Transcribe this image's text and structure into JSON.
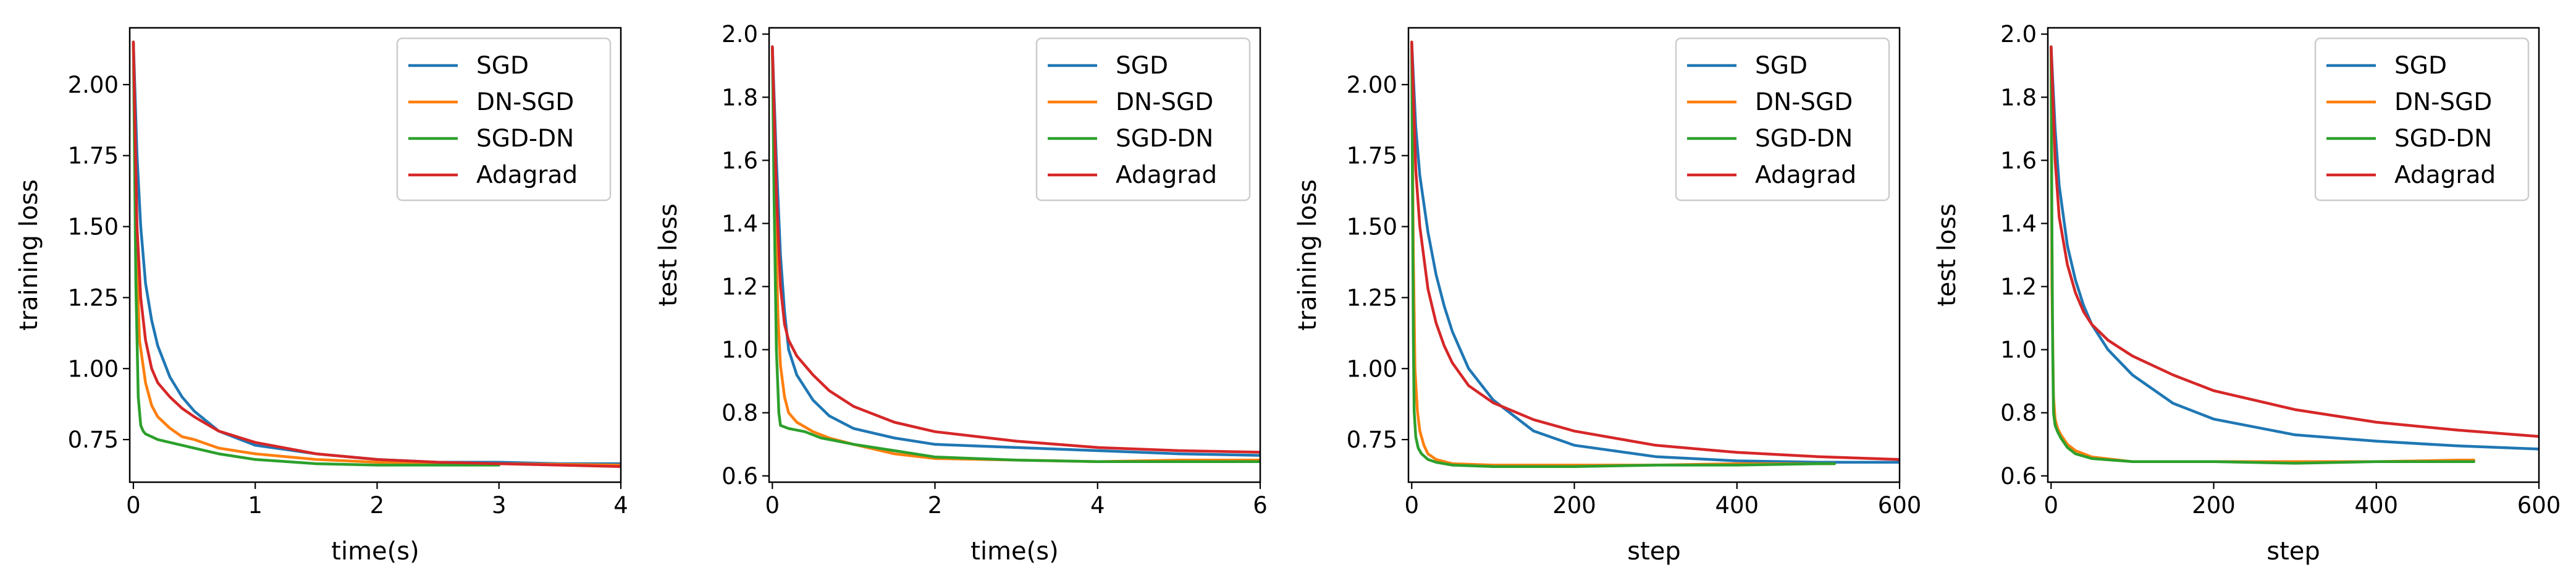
{
  "chart_data": [
    {
      "type": "line",
      "xlabel": "time(s)",
      "ylabel": "training loss",
      "xlim": [
        -0.03,
        4
      ],
      "ylim": [
        0.6,
        2.2
      ],
      "xticks": [
        0,
        1,
        2,
        3,
        4
      ],
      "xtick_labels": [
        "0",
        "1",
        "2",
        "3",
        "4"
      ],
      "yticks": [
        0.75,
        1.0,
        1.25,
        1.5,
        1.75,
        2.0
      ],
      "ytick_labels": [
        "0.75",
        "1.00",
        "1.25",
        "1.50",
        "1.75",
        "2.00"
      ],
      "legend_position": "top-right",
      "series": [
        {
          "name": "SGD",
          "color": "#1f77b4",
          "x": [
            0,
            0.03,
            0.06,
            0.1,
            0.15,
            0.2,
            0.3,
            0.4,
            0.5,
            0.7,
            1.0,
            1.5,
            2.0,
            2.5,
            3.0,
            3.5,
            4.0
          ],
          "y": [
            2.15,
            1.75,
            1.5,
            1.3,
            1.17,
            1.08,
            0.97,
            0.9,
            0.85,
            0.78,
            0.73,
            0.7,
            0.68,
            0.67,
            0.67,
            0.665,
            0.665
          ]
        },
        {
          "name": "DN-SGD",
          "color": "#ff7f0e",
          "x": [
            0,
            0.02,
            0.05,
            0.1,
            0.15,
            0.2,
            0.3,
            0.4,
            0.5,
            0.7,
            1.0,
            1.5,
            2.0,
            3.0,
            4.0
          ],
          "y": [
            2.15,
            1.5,
            1.1,
            0.95,
            0.87,
            0.83,
            0.79,
            0.76,
            0.75,
            0.72,
            0.7,
            0.68,
            0.67,
            0.665,
            0.66
          ]
        },
        {
          "name": "SGD-DN",
          "color": "#2ca02c",
          "x": [
            0,
            0.02,
            0.04,
            0.06,
            0.08,
            0.1,
            0.2,
            0.3,
            0.5,
            0.7,
            1.0,
            1.5,
            2.0,
            2.5,
            3.0
          ],
          "y": [
            2.15,
            1.3,
            0.9,
            0.8,
            0.78,
            0.77,
            0.75,
            0.74,
            0.72,
            0.7,
            0.68,
            0.665,
            0.66,
            0.66,
            0.66
          ]
        },
        {
          "name": "Adagrad",
          "color": "#d62728",
          "x": [
            0,
            0.03,
            0.06,
            0.1,
            0.15,
            0.2,
            0.3,
            0.4,
            0.5,
            0.7,
            1.0,
            1.5,
            2.0,
            2.5,
            3.0,
            3.5,
            4.0
          ],
          "y": [
            2.15,
            1.5,
            1.25,
            1.1,
            1.0,
            0.95,
            0.9,
            0.86,
            0.83,
            0.78,
            0.74,
            0.7,
            0.68,
            0.67,
            0.665,
            0.66,
            0.655
          ]
        }
      ]
    },
    {
      "type": "line",
      "xlabel": "time(s)",
      "ylabel": "test loss",
      "xlim": [
        -0.04,
        6
      ],
      "ylim": [
        0.58,
        2.02
      ],
      "xticks": [
        0,
        2,
        4,
        6
      ],
      "xtick_labels": [
        "0",
        "2",
        "4",
        "6"
      ],
      "yticks": [
        0.6,
        0.8,
        1.0,
        1.2,
        1.4,
        1.6,
        1.8,
        2.0
      ],
      "ytick_labels": [
        "0.6",
        "0.8",
        "1.0",
        "1.2",
        "1.4",
        "1.6",
        "1.8",
        "2.0"
      ],
      "legend_position": "top-right",
      "series": [
        {
          "name": "SGD",
          "color": "#1f77b4",
          "x": [
            0,
            0.05,
            0.1,
            0.15,
            0.2,
            0.3,
            0.5,
            0.7,
            1.0,
            1.5,
            2.0,
            3.0,
            4.0,
            5.0,
            6.0
          ],
          "y": [
            1.96,
            1.6,
            1.3,
            1.12,
            1.0,
            0.92,
            0.84,
            0.79,
            0.75,
            0.72,
            0.7,
            0.69,
            0.68,
            0.67,
            0.665
          ]
        },
        {
          "name": "DN-SGD",
          "color": "#ff7f0e",
          "x": [
            0,
            0.03,
            0.07,
            0.1,
            0.15,
            0.2,
            0.3,
            0.5,
            0.7,
            1.0,
            1.5,
            2.0,
            3.0,
            4.0,
            5.0,
            6.0
          ],
          "y": [
            1.96,
            1.5,
            1.1,
            0.95,
            0.85,
            0.8,
            0.77,
            0.74,
            0.72,
            0.7,
            0.67,
            0.655,
            0.65,
            0.645,
            0.65,
            0.65
          ]
        },
        {
          "name": "SGD-DN",
          "color": "#2ca02c",
          "x": [
            0,
            0.02,
            0.05,
            0.08,
            0.1,
            0.2,
            0.4,
            0.6,
            0.8,
            1.0,
            1.5,
            2.0,
            3.0,
            4.0,
            5.0,
            6.0
          ],
          "y": [
            1.96,
            1.5,
            1.0,
            0.8,
            0.76,
            0.75,
            0.74,
            0.72,
            0.71,
            0.7,
            0.68,
            0.66,
            0.65,
            0.645,
            0.645,
            0.645
          ]
        },
        {
          "name": "Adagrad",
          "color": "#d62728",
          "x": [
            0,
            0.05,
            0.1,
            0.15,
            0.2,
            0.3,
            0.5,
            0.7,
            1.0,
            1.5,
            2.0,
            3.0,
            4.0,
            5.0,
            6.0
          ],
          "y": [
            1.96,
            1.5,
            1.2,
            1.08,
            1.03,
            0.98,
            0.92,
            0.87,
            0.82,
            0.77,
            0.74,
            0.71,
            0.69,
            0.68,
            0.675
          ]
        }
      ]
    },
    {
      "type": "line",
      "xlabel": "step",
      "ylabel": "training loss",
      "xlim": [
        -4,
        600
      ],
      "ylim": [
        0.6,
        2.2
      ],
      "xticks": [
        0,
        200,
        400,
        600
      ],
      "xtick_labels": [
        "0",
        "200",
        "400",
        "600"
      ],
      "yticks": [
        0.75,
        1.0,
        1.25,
        1.5,
        1.75,
        2.0
      ],
      "ytick_labels": [
        "0.75",
        "1.00",
        "1.25",
        "1.50",
        "1.75",
        "2.00"
      ],
      "legend_position": "top-right",
      "series": [
        {
          "name": "SGD",
          "color": "#1f77b4",
          "x": [
            0,
            5,
            10,
            20,
            30,
            40,
            50,
            70,
            100,
            150,
            200,
            300,
            400,
            500,
            600
          ],
          "y": [
            2.15,
            1.85,
            1.68,
            1.48,
            1.33,
            1.22,
            1.13,
            1.0,
            0.89,
            0.78,
            0.73,
            0.69,
            0.675,
            0.67,
            0.67
          ]
        },
        {
          "name": "DN-SGD",
          "color": "#ff7f0e",
          "x": [
            0,
            2,
            4,
            7,
            10,
            15,
            20,
            30,
            50,
            100,
            200,
            300,
            400,
            500,
            520
          ],
          "y": [
            2.15,
            1.4,
            1.0,
            0.85,
            0.78,
            0.73,
            0.7,
            0.68,
            0.665,
            0.66,
            0.66,
            0.66,
            0.665,
            0.665,
            0.665
          ]
        },
        {
          "name": "SGD-DN",
          "color": "#2ca02c",
          "x": [
            0,
            1,
            2,
            3,
            5,
            8,
            12,
            20,
            30,
            50,
            100,
            200,
            300,
            400,
            500,
            520
          ],
          "y": [
            2.15,
            1.6,
            1.1,
            0.85,
            0.76,
            0.72,
            0.7,
            0.68,
            0.67,
            0.66,
            0.655,
            0.655,
            0.66,
            0.66,
            0.665,
            0.665
          ]
        },
        {
          "name": "Adagrad",
          "color": "#d62728",
          "x": [
            0,
            5,
            10,
            20,
            30,
            40,
            50,
            70,
            100,
            150,
            200,
            300,
            400,
            500,
            600
          ],
          "y": [
            2.15,
            1.7,
            1.5,
            1.28,
            1.16,
            1.08,
            1.02,
            0.94,
            0.88,
            0.82,
            0.78,
            0.73,
            0.705,
            0.69,
            0.68
          ]
        }
      ]
    },
    {
      "type": "line",
      "xlabel": "step",
      "ylabel": "test loss",
      "xlim": [
        -4,
        600
      ],
      "ylim": [
        0.58,
        2.02
      ],
      "xticks": [
        0,
        200,
        400,
        600
      ],
      "xtick_labels": [
        "0",
        "200",
        "400",
        "600"
      ],
      "yticks": [
        0.6,
        0.8,
        1.0,
        1.2,
        1.4,
        1.6,
        1.8,
        2.0
      ],
      "ytick_labels": [
        "0.6",
        "0.8",
        "1.0",
        "1.2",
        "1.4",
        "1.6",
        "1.8",
        "2.0"
      ],
      "legend_position": "top-right",
      "series": [
        {
          "name": "SGD",
          "color": "#1f77b4",
          "x": [
            0,
            5,
            10,
            20,
            30,
            40,
            50,
            70,
            100,
            150,
            200,
            300,
            400,
            500,
            600
          ],
          "y": [
            1.96,
            1.7,
            1.52,
            1.33,
            1.22,
            1.14,
            1.08,
            1.0,
            0.92,
            0.83,
            0.78,
            0.73,
            0.71,
            0.695,
            0.685
          ]
        },
        {
          "name": "DN-SGD",
          "color": "#ff7f0e",
          "x": [
            0,
            1,
            3,
            5,
            8,
            12,
            20,
            30,
            50,
            100,
            200,
            300,
            400,
            500,
            520
          ],
          "y": [
            1.96,
            1.2,
            0.85,
            0.78,
            0.75,
            0.73,
            0.7,
            0.68,
            0.66,
            0.645,
            0.645,
            0.645,
            0.645,
            0.65,
            0.65
          ]
        },
        {
          "name": "SGD-DN",
          "color": "#2ca02c",
          "x": [
            0,
            1,
            2,
            3,
            5,
            8,
            12,
            20,
            30,
            50,
            100,
            200,
            300,
            400,
            500,
            520
          ],
          "y": [
            1.96,
            1.4,
            1.0,
            0.8,
            0.76,
            0.74,
            0.72,
            0.69,
            0.67,
            0.655,
            0.645,
            0.645,
            0.64,
            0.645,
            0.645,
            0.645
          ]
        },
        {
          "name": "Adagrad",
          "color": "#d62728",
          "x": [
            0,
            5,
            10,
            20,
            30,
            40,
            50,
            70,
            100,
            150,
            200,
            300,
            400,
            500,
            600
          ],
          "y": [
            1.96,
            1.6,
            1.42,
            1.27,
            1.18,
            1.12,
            1.08,
            1.03,
            0.98,
            0.92,
            0.87,
            0.81,
            0.77,
            0.745,
            0.725
          ]
        }
      ]
    }
  ]
}
